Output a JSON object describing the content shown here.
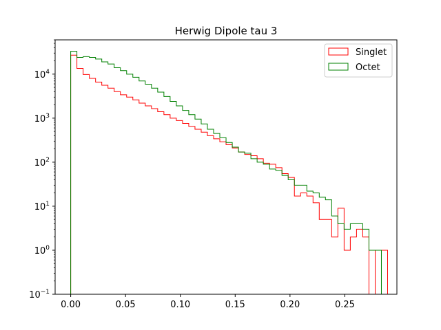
{
  "chart_data": {
    "type": "histogram",
    "title": "Herwig Dipole tau 3",
    "xlabel": "",
    "ylabel": "",
    "xlim": [
      -0.0142,
      0.2975
    ],
    "ylim": [
      0.1,
      60000
    ],
    "yscale": "log",
    "grid": false,
    "legend_position": "top-right",
    "bin_start": 0.0,
    "bin_width": 0.005667,
    "x_ticks": [
      "0.00",
      "0.05",
      "0.10",
      "0.15",
      "0.20",
      "0.25"
    ],
    "x_tick_values": [
      0.0,
      0.05,
      0.1,
      0.15,
      0.2,
      0.25
    ],
    "y_ticks": [
      {
        "base": "10",
        "exp": "−1",
        "value": 0.1
      },
      {
        "base": "10",
        "exp": "0",
        "value": 1
      },
      {
        "base": "10",
        "exp": "1",
        "value": 10
      },
      {
        "base": "10",
        "exp": "2",
        "value": 100
      },
      {
        "base": "10",
        "exp": "3",
        "value": 1000
      },
      {
        "base": "10",
        "exp": "4",
        "value": 10000
      }
    ],
    "series": [
      {
        "name": "Singlet",
        "color": "#ff0000",
        "values": [
          27000,
          13500,
          9800,
          8000,
          6600,
          5600,
          4800,
          4000,
          3400,
          3000,
          2600,
          2200,
          1900,
          1650,
          1400,
          1200,
          1000,
          880,
          760,
          650,
          560,
          480,
          400,
          340,
          290,
          250,
          210,
          170,
          150,
          140,
          120,
          95,
          90,
          75,
          55,
          45,
          17,
          20,
          17,
          12,
          5,
          5,
          2,
          9,
          1,
          2,
          3,
          2,
          0,
          1,
          1
        ]
      },
      {
        "name": "Octet",
        "color": "#008000",
        "values": [
          33000,
          24000,
          25000,
          24000,
          22000,
          19000,
          17000,
          14000,
          12000,
          10000,
          8500,
          7000,
          5900,
          4800,
          3900,
          3100,
          2400,
          1900,
          1500,
          1200,
          950,
          740,
          560,
          450,
          360,
          280,
          220,
          170,
          160,
          120,
          100,
          90,
          70,
          65,
          50,
          40,
          30,
          30,
          22,
          20,
          16,
          14,
          6,
          4,
          3,
          4,
          4,
          3,
          1,
          1,
          0
        ]
      }
    ]
  }
}
